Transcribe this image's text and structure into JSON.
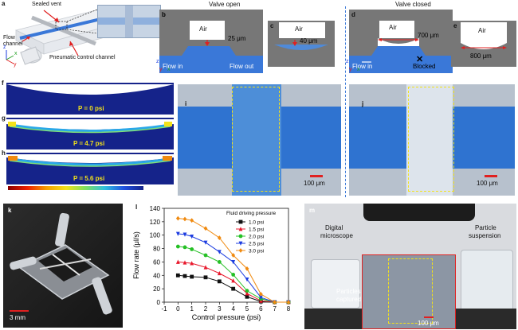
{
  "figure": {
    "a": {
      "letter": "a",
      "sealed_vent": "Sealed vent",
      "flow_channel_1": "Flow",
      "flow_channel_2": "channel",
      "pneumatic": "Pneumatic control channel",
      "axis_z": "z",
      "axis_y": "y",
      "axis_x": "x"
    },
    "headers": {
      "valve_open": "Valve open",
      "valve_closed": "Valve closed"
    },
    "b": {
      "letter": "b",
      "air": "Air",
      "dim": "25 μm",
      "flow_in": "Flow in",
      "flow_out": "Flow out",
      "axis_z": "z",
      "axis_y": "y",
      "axis_x": "x"
    },
    "c": {
      "letter": "c",
      "air": "Air",
      "dim": "40 μm"
    },
    "d": {
      "letter": "d",
      "air": "Air",
      "dim": "700 μm",
      "flow_in": "Flow in",
      "blocked": "Blocked",
      "axis_z": "z",
      "axis_y": "y",
      "axis_x": "x"
    },
    "e": {
      "letter": "e",
      "air": "Air",
      "dim": "800 μm"
    },
    "f": {
      "letter": "f",
      "p": "P = 0 psi"
    },
    "g": {
      "letter": "g",
      "p": "P = 4.7 psi"
    },
    "h": {
      "letter": "h",
      "p": "P = 5.6 psi"
    },
    "colorbar": {
      "ticks": [
        "5",
        "4",
        "3",
        "2",
        "1"
      ],
      "unit": "×10⁶ N/m²"
    },
    "i": {
      "letter": "i",
      "scale": "100 μm"
    },
    "j": {
      "letter": "j",
      "scale": "100 μm"
    },
    "k": {
      "letter": "k",
      "scale": "3 mm"
    },
    "m": {
      "letter": "m",
      "microscope_1": "Digital",
      "microscope_2": "microscope",
      "suspension_1": "Particle",
      "suspension_2": "suspension",
      "captured_1": "Particles",
      "captured_2": "captured",
      "scale": "100 μm"
    },
    "colors": {
      "blue": "#3a78d8",
      "gray": "#777777",
      "yellow": "#f3e21a",
      "red": "#e02020",
      "orange": "#f08a10"
    }
  },
  "chart_data": {
    "type": "line",
    "panel": "l",
    "xlabel": "Control pressure (psi)",
    "ylabel": "Flow rate (μl/s)",
    "xlim": [
      -1,
      8
    ],
    "ylim": [
      0,
      140
    ],
    "xticks": [
      -1,
      0,
      1,
      2,
      3,
      4,
      5,
      6,
      7,
      8
    ],
    "yticks": [
      0,
      20,
      40,
      60,
      80,
      100,
      120,
      140
    ],
    "legend_title": "Fluid driving pressure",
    "legend_position": "top-right",
    "x": [
      0,
      0.5,
      1,
      2,
      3,
      4,
      5,
      6,
      7,
      8
    ],
    "series": [
      {
        "name": "1.0 psi",
        "color": "#111111",
        "marker": "square",
        "values": [
          40,
          39,
          38,
          37,
          31,
          20,
          8,
          1,
          0,
          0
        ]
      },
      {
        "name": "1.5 psi",
        "color": "#e8182c",
        "marker": "triangle-up",
        "values": [
          60,
          59,
          58,
          52,
          43,
          32,
          13,
          2,
          0,
          0
        ]
      },
      {
        "name": "2.0 psi",
        "color": "#25c025",
        "marker": "circle",
        "values": [
          83,
          82,
          79,
          70,
          60,
          41,
          17,
          5,
          0,
          0
        ]
      },
      {
        "name": "2.5 psi",
        "color": "#1c3ce0",
        "marker": "triangle-down",
        "values": [
          102,
          101,
          98,
          89,
          75,
          60,
          34,
          7,
          0,
          0
        ]
      },
      {
        "name": "3.0 psi",
        "color": "#f08a10",
        "marker": "diamond",
        "values": [
          125,
          124,
          122,
          110,
          96,
          70,
          50,
          12,
          0,
          0
        ]
      }
    ]
  }
}
